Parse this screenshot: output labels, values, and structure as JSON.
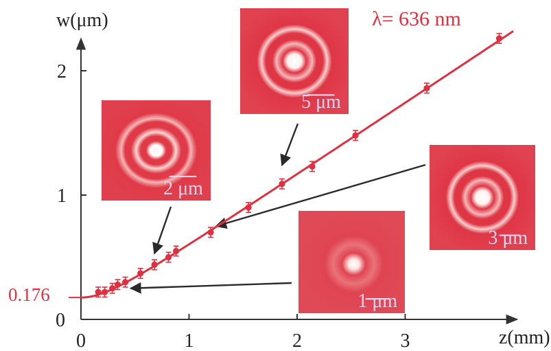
{
  "chart_data": {
    "type": "scatter",
    "xlabel": "z(mm)",
    "ylabel": "w(μm)",
    "annotation": "λ= 636 nm",
    "waist_label": "0.176",
    "xlim": [
      0,
      4.0
    ],
    "ylim": [
      0,
      2.35
    ],
    "x_ticks": [
      "0",
      "1",
      "2",
      "3"
    ],
    "y_ticks": [
      "0",
      "1",
      "2"
    ],
    "colors": {
      "data": "#e0303f",
      "axis": "#333333",
      "arrow": "#2a2a2a",
      "inset_label": "#dcd6f0"
    },
    "points": {
      "x": [
        0.16,
        0.22,
        0.29,
        0.34,
        0.41,
        0.55,
        0.68,
        0.81,
        0.88,
        1.2,
        1.55,
        1.86,
        2.14,
        2.54,
        3.2,
        3.87
      ],
      "y": [
        0.22,
        0.22,
        0.25,
        0.28,
        0.3,
        0.37,
        0.44,
        0.5,
        0.55,
        0.7,
        0.9,
        1.09,
        1.23,
        1.48,
        1.86,
        2.26
      ],
      "err": [
        0.04,
        0.04,
        0.04,
        0.04,
        0.04,
        0.04,
        0.04,
        0.04,
        0.04,
        0.04,
        0.04,
        0.04,
        0.04,
        0.04,
        0.04,
        0.04
      ]
    },
    "fit": {
      "w0": 0.176,
      "slope": 0.578
    },
    "insets": [
      {
        "scale": "2 μm",
        "target": {
          "x": 0.68,
          "y": 0.53
        }
      },
      {
        "scale": "5 μm",
        "target": {
          "x": 1.86,
          "y": 1.24
        }
      },
      {
        "scale": "3 μm",
        "target": {
          "x": 1.25,
          "y": 0.75
        }
      },
      {
        "scale": "1 μm",
        "target": {
          "x": 0.46,
          "y": 0.25
        }
      }
    ]
  }
}
